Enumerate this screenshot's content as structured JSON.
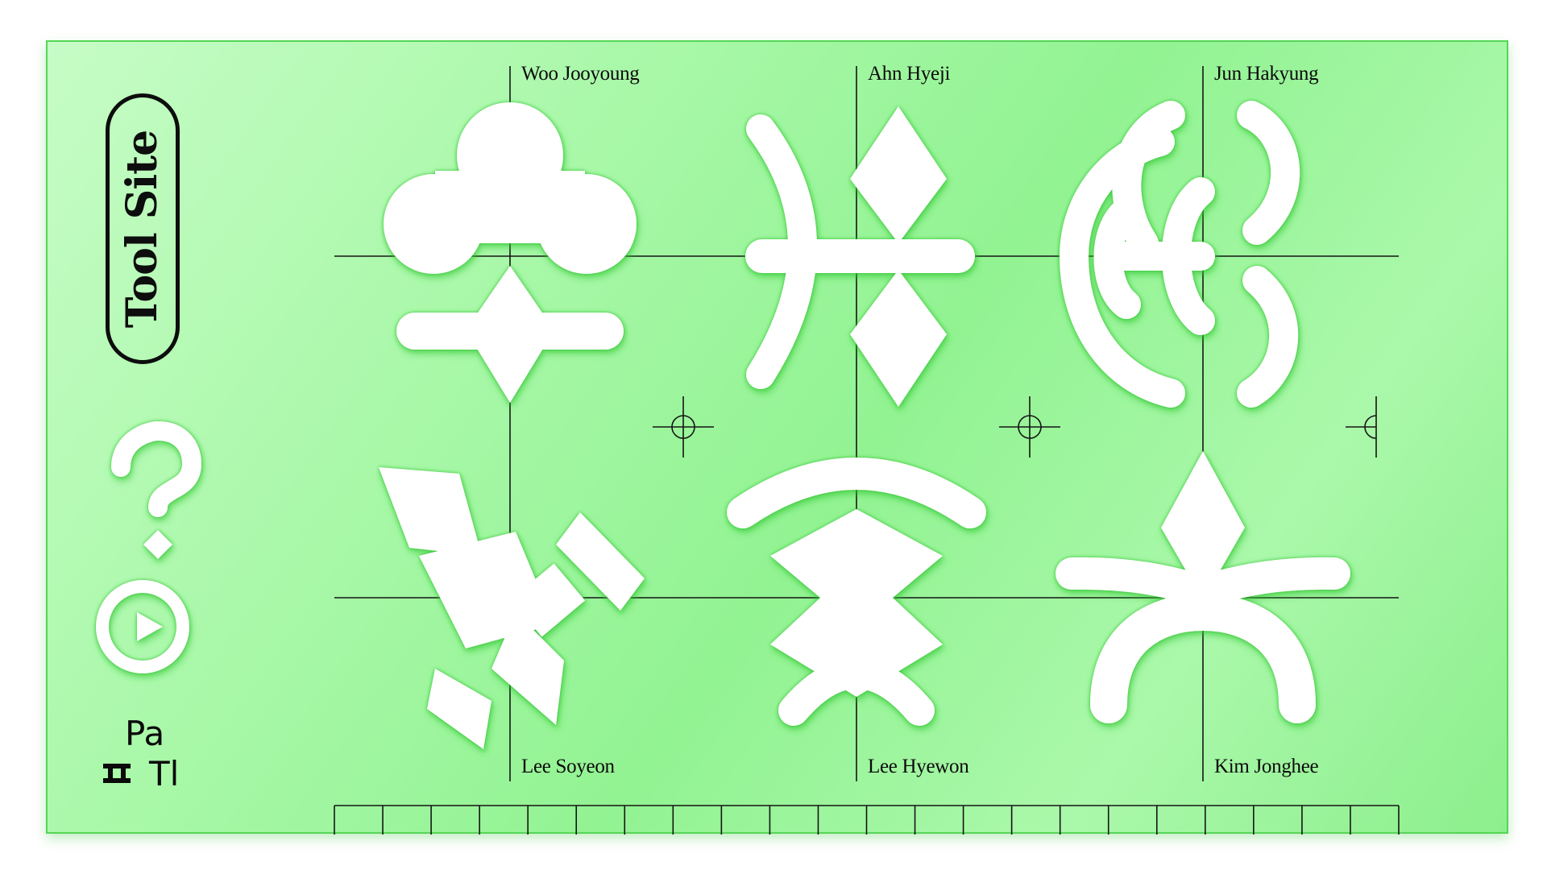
{
  "site": {
    "logo_text": "Tool Site"
  },
  "colors": {
    "board_green": "#a6f7a6",
    "cutout": "#ffffff",
    "ink": "#0a0a0a",
    "edge": "#55d655"
  },
  "nav": {
    "help_icon": "question-mark-icon",
    "play_icon": "play-icon",
    "language_top": "Pa",
    "language_bottom": "Tl"
  },
  "credits": [
    {
      "name": "Woo Jooyoung"
    },
    {
      "name": "Ahn Hyeji"
    },
    {
      "name": "Jun Hakyung"
    },
    {
      "name": "Lee Soyeon"
    },
    {
      "name": "Lee Hyewon"
    },
    {
      "name": "Kim Jonghee"
    }
  ],
  "ruler": {
    "segments": 22
  }
}
